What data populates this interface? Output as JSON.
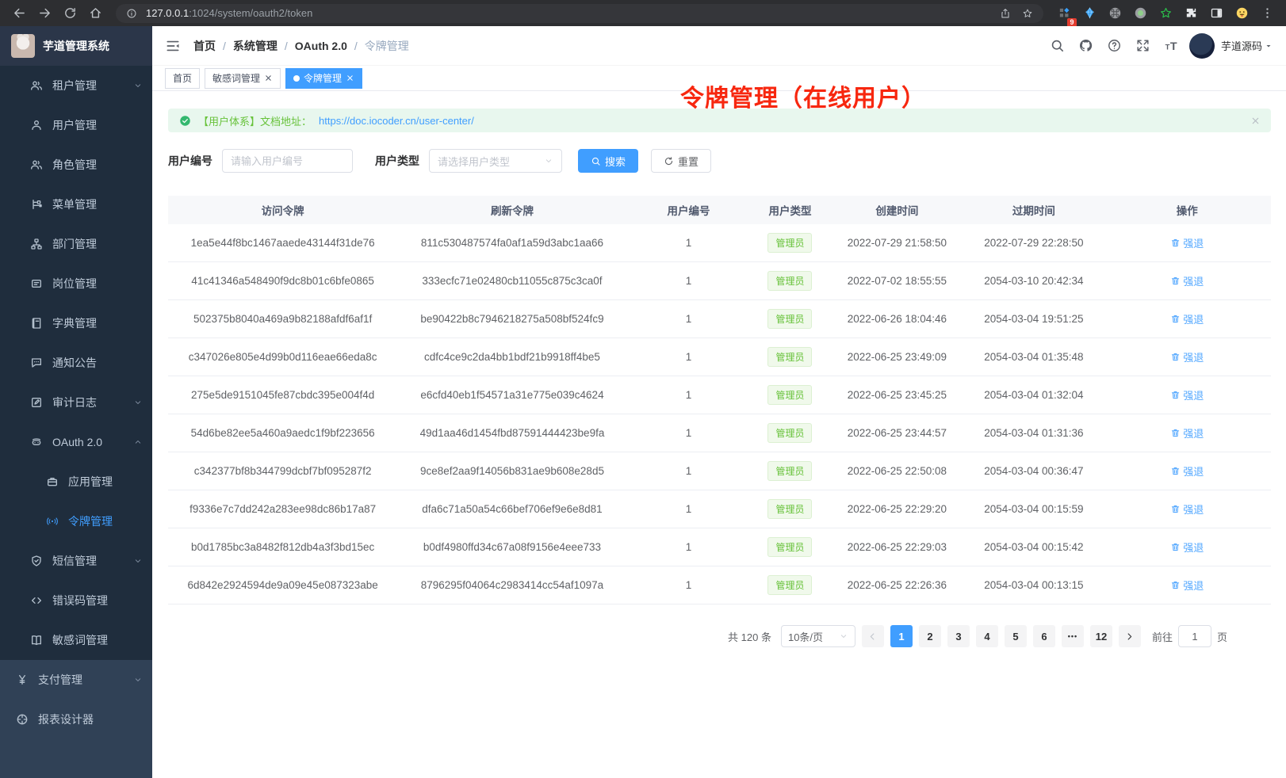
{
  "browser": {
    "url_host": "127.0.0.1",
    "url_rest": ":1024/system/oauth2/token",
    "extension_badge": "9"
  },
  "annotation": "令牌管理（在线用户）",
  "sidebar": {
    "app_title": "芋道管理系统",
    "items": [
      {
        "key": "tenant",
        "label": "租户管理",
        "icon": "users",
        "level": "sub",
        "arrow": "down"
      },
      {
        "key": "user",
        "label": "用户管理",
        "icon": "user",
        "level": "sub"
      },
      {
        "key": "role",
        "label": "角色管理",
        "icon": "users",
        "level": "sub"
      },
      {
        "key": "menu",
        "label": "菜单管理",
        "icon": "tree",
        "level": "sub"
      },
      {
        "key": "dept",
        "label": "部门管理",
        "icon": "org",
        "level": "sub"
      },
      {
        "key": "post",
        "label": "岗位管理",
        "icon": "badge",
        "level": "sub"
      },
      {
        "key": "dict",
        "label": "字典管理",
        "icon": "dict",
        "level": "sub"
      },
      {
        "key": "notice",
        "label": "通知公告",
        "icon": "chat",
        "level": "sub"
      },
      {
        "key": "audit-log",
        "label": "审计日志",
        "icon": "edit",
        "level": "sub",
        "arrow": "down"
      },
      {
        "key": "oauth2",
        "label": "OAuth 2.0",
        "icon": "robot",
        "level": "sub",
        "arrow": "up"
      },
      {
        "key": "oauth2-app",
        "label": "应用管理",
        "icon": "briefcase",
        "level": "subsub"
      },
      {
        "key": "oauth2-token",
        "label": "令牌管理",
        "icon": "broadcast",
        "level": "subsub",
        "active": true
      },
      {
        "key": "sms",
        "label": "短信管理",
        "icon": "shield",
        "level": "sub",
        "arrow": "down"
      },
      {
        "key": "error-code",
        "label": "错误码管理",
        "icon": "code",
        "level": "sub"
      },
      {
        "key": "sensitive-word",
        "label": "敏感词管理",
        "icon": "book",
        "level": "sub"
      },
      {
        "key": "pay",
        "label": "支付管理",
        "icon": "yen",
        "level": "root",
        "arrow": "down"
      },
      {
        "key": "report-designer",
        "label": "报表设计器",
        "icon": "compass",
        "level": "root"
      }
    ]
  },
  "header": {
    "breadcrumb": [
      "首页",
      "系统管理",
      "OAuth 2.0",
      "令牌管理"
    ],
    "username": "芋道源码",
    "actions": [
      {
        "key": "search",
        "icon": "search"
      },
      {
        "key": "github",
        "icon": "github"
      },
      {
        "key": "help",
        "icon": "question"
      },
      {
        "key": "fullscreen",
        "icon": "fullscreen"
      },
      {
        "key": "font-size",
        "icon": "fontsize"
      }
    ]
  },
  "tabs": [
    {
      "key": "home",
      "label": "首页",
      "closable": false,
      "active": false
    },
    {
      "key": "sensitive-word",
      "label": "敏感词管理",
      "closable": true,
      "active": false
    },
    {
      "key": "token",
      "label": "令牌管理",
      "closable": true,
      "active": true
    }
  ],
  "alert": {
    "text": "【用户体系】文档地址：",
    "link": "https://doc.iocoder.cn/user-center/"
  },
  "filters": {
    "user_id_label": "用户编号",
    "user_id_placeholder": "请输入用户编号",
    "user_type_label": "用户类型",
    "user_type_placeholder": "请选择用户类型",
    "search_label": "搜索",
    "reset_label": "重置"
  },
  "table": {
    "columns": [
      "访问令牌",
      "刷新令牌",
      "用户编号",
      "用户类型",
      "创建时间",
      "过期时间",
      "操作"
    ],
    "action_label": "强退",
    "rows": [
      {
        "access_token": "1ea5e44f8bc1467aaede43144f31de76",
        "refresh_token": "811c530487574fa0af1a59d3abc1aa66",
        "user_id": "1",
        "user_type": "管理员",
        "create_time": "2022-07-29 21:58:50",
        "expire_time": "2022-07-29 22:28:50"
      },
      {
        "access_token": "41c41346a548490f9dc8b01c6bfe0865",
        "refresh_token": "333ecfc71e02480cb11055c875c3ca0f",
        "user_id": "1",
        "user_type": "管理员",
        "create_time": "2022-07-02 18:55:55",
        "expire_time": "2054-03-10 20:42:34"
      },
      {
        "access_token": "502375b8040a469a9b82188afdf6af1f",
        "refresh_token": "be90422b8c7946218275a508bf524fc9",
        "user_id": "1",
        "user_type": "管理员",
        "create_time": "2022-06-26 18:04:46",
        "expire_time": "2054-03-04 19:51:25"
      },
      {
        "access_token": "c347026e805e4d99b0d116eae66eda8c",
        "refresh_token": "cdfc4ce9c2da4bb1bdf21b9918ff4be5",
        "user_id": "1",
        "user_type": "管理员",
        "create_time": "2022-06-25 23:49:09",
        "expire_time": "2054-03-04 01:35:48"
      },
      {
        "access_token": "275e5de9151045fe87cbdc395e004f4d",
        "refresh_token": "e6cfd40eb1f54571a31e775e039c4624",
        "user_id": "1",
        "user_type": "管理员",
        "create_time": "2022-06-25 23:45:25",
        "expire_time": "2054-03-04 01:32:04"
      },
      {
        "access_token": "54d6be82ee5a460a9aedc1f9bf223656",
        "refresh_token": "49d1aa46d1454fbd87591444423be9fa",
        "user_id": "1",
        "user_type": "管理员",
        "create_time": "2022-06-25 23:44:57",
        "expire_time": "2054-03-04 01:31:36"
      },
      {
        "access_token": "c342377bf8b344799dcbf7bf095287f2",
        "refresh_token": "9ce8ef2aa9f14056b831ae9b608e28d5",
        "user_id": "1",
        "user_type": "管理员",
        "create_time": "2022-06-25 22:50:08",
        "expire_time": "2054-03-04 00:36:47"
      },
      {
        "access_token": "f9336e7c7dd242a283ee98dc86b17a87",
        "refresh_token": "dfa6c71a50a54c66bef706ef9e6e8d81",
        "user_id": "1",
        "user_type": "管理员",
        "create_time": "2022-06-25 22:29:20",
        "expire_time": "2054-03-04 00:15:59"
      },
      {
        "access_token": "b0d1785bc3a8482f812db4a3f3bd15ec",
        "refresh_token": "b0df4980ffd34c67a08f9156e4eee733",
        "user_id": "1",
        "user_type": "管理员",
        "create_time": "2022-06-25 22:29:03",
        "expire_time": "2054-03-04 00:15:42"
      },
      {
        "access_token": "6d842e2924594de9a09e45e087323abe",
        "refresh_token": "8796295f04064c2983414cc54af1097a",
        "user_id": "1",
        "user_type": "管理员",
        "create_time": "2022-06-25 22:26:36",
        "expire_time": "2054-03-04 00:13:15"
      }
    ]
  },
  "pagination": {
    "total_label": "共 120 条",
    "page_size": "10条/页",
    "pages": [
      "1",
      "2",
      "3",
      "4",
      "5",
      "6",
      "...",
      "12"
    ],
    "active_page": "1",
    "goto_label": "前往",
    "goto_value": "1",
    "goto_unit": "页"
  },
  "colors": {
    "accent": "#409eff",
    "success": "#67c23a",
    "annotation_red": "#f7270f",
    "sidebar_bg": "#304156",
    "submenu_bg": "#1f2d3d"
  }
}
